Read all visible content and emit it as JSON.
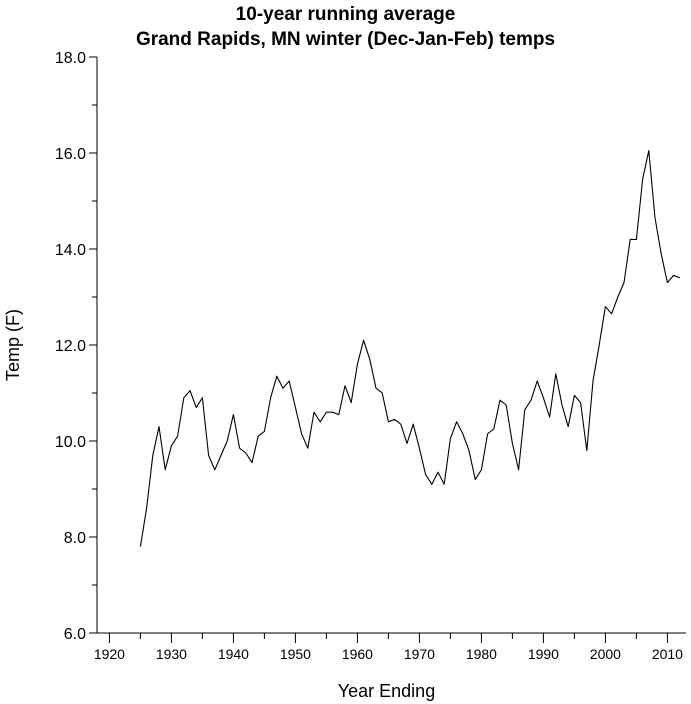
{
  "chart_data": {
    "type": "line",
    "title": [
      "10-year running average",
      "Grand Rapids, MN winter (Dec-Jan-Feb) temps"
    ],
    "xlabel": "Year Ending",
    "ylabel": "Temp (F)",
    "xlim": [
      1918,
      2013
    ],
    "ylim": [
      6.0,
      18.0
    ],
    "x_ticks": [
      1920,
      1930,
      1940,
      1950,
      1960,
      1970,
      1980,
      1990,
      2000,
      2010
    ],
    "y_ticks": [
      6.0,
      8.0,
      10.0,
      12.0,
      14.0,
      16.0,
      18.0
    ],
    "y_tick_labels": [
      "6.0",
      "8.0",
      "10.0",
      "12.0",
      "14.0",
      "16.0",
      "18.0"
    ],
    "grid": false,
    "series": [
      {
        "color": "#000000",
        "x": [
          1925,
          1926,
          1927,
          1928,
          1929,
          1930,
          1931,
          1932,
          1933,
          1934,
          1935,
          1936,
          1937,
          1938,
          1939,
          1940,
          1941,
          1942,
          1943,
          1944,
          1945,
          1946,
          1947,
          1948,
          1949,
          1950,
          1951,
          1952,
          1953,
          1954,
          1955,
          1956,
          1957,
          1958,
          1959,
          1960,
          1961,
          1962,
          1963,
          1964,
          1965,
          1966,
          1967,
          1968,
          1969,
          1970,
          1971,
          1972,
          1973,
          1974,
          1975,
          1976,
          1977,
          1978,
          1979,
          1980,
          1981,
          1982,
          1983,
          1984,
          1985,
          1986,
          1987,
          1988,
          1989,
          1990,
          1991,
          1992,
          1993,
          1994,
          1995,
          1996,
          1997,
          1998,
          1999,
          2000,
          2001,
          2002,
          2003,
          2004,
          2005,
          2006,
          2007,
          2008,
          2009,
          2010,
          2011,
          2012
        ],
        "y": [
          7.8,
          8.6,
          9.7,
          10.3,
          9.4,
          9.9,
          10.1,
          10.9,
          11.05,
          10.7,
          10.9,
          9.7,
          9.4,
          9.7,
          10.0,
          10.55,
          9.85,
          9.75,
          9.55,
          10.1,
          10.2,
          10.9,
          11.35,
          11.1,
          11.25,
          10.7,
          10.15,
          9.85,
          10.6,
          10.4,
          10.6,
          10.6,
          10.55,
          11.15,
          10.8,
          11.6,
          12.1,
          11.7,
          11.1,
          11.0,
          10.4,
          10.45,
          10.35,
          9.95,
          10.35,
          9.85,
          9.3,
          9.1,
          9.35,
          9.1,
          10.05,
          10.4,
          10.15,
          9.8,
          9.2,
          9.4,
          10.15,
          10.25,
          10.85,
          10.75,
          9.95,
          9.4,
          10.65,
          10.85,
          11.25,
          10.9,
          10.5,
          11.4,
          10.75,
          10.3,
          10.95,
          10.8,
          9.8,
          11.25,
          12.0,
          12.8,
          12.65,
          13.0,
          13.3,
          14.2,
          14.2,
          15.45,
          16.05,
          14.65,
          13.9,
          13.3,
          13.45,
          13.4
        ]
      }
    ]
  }
}
